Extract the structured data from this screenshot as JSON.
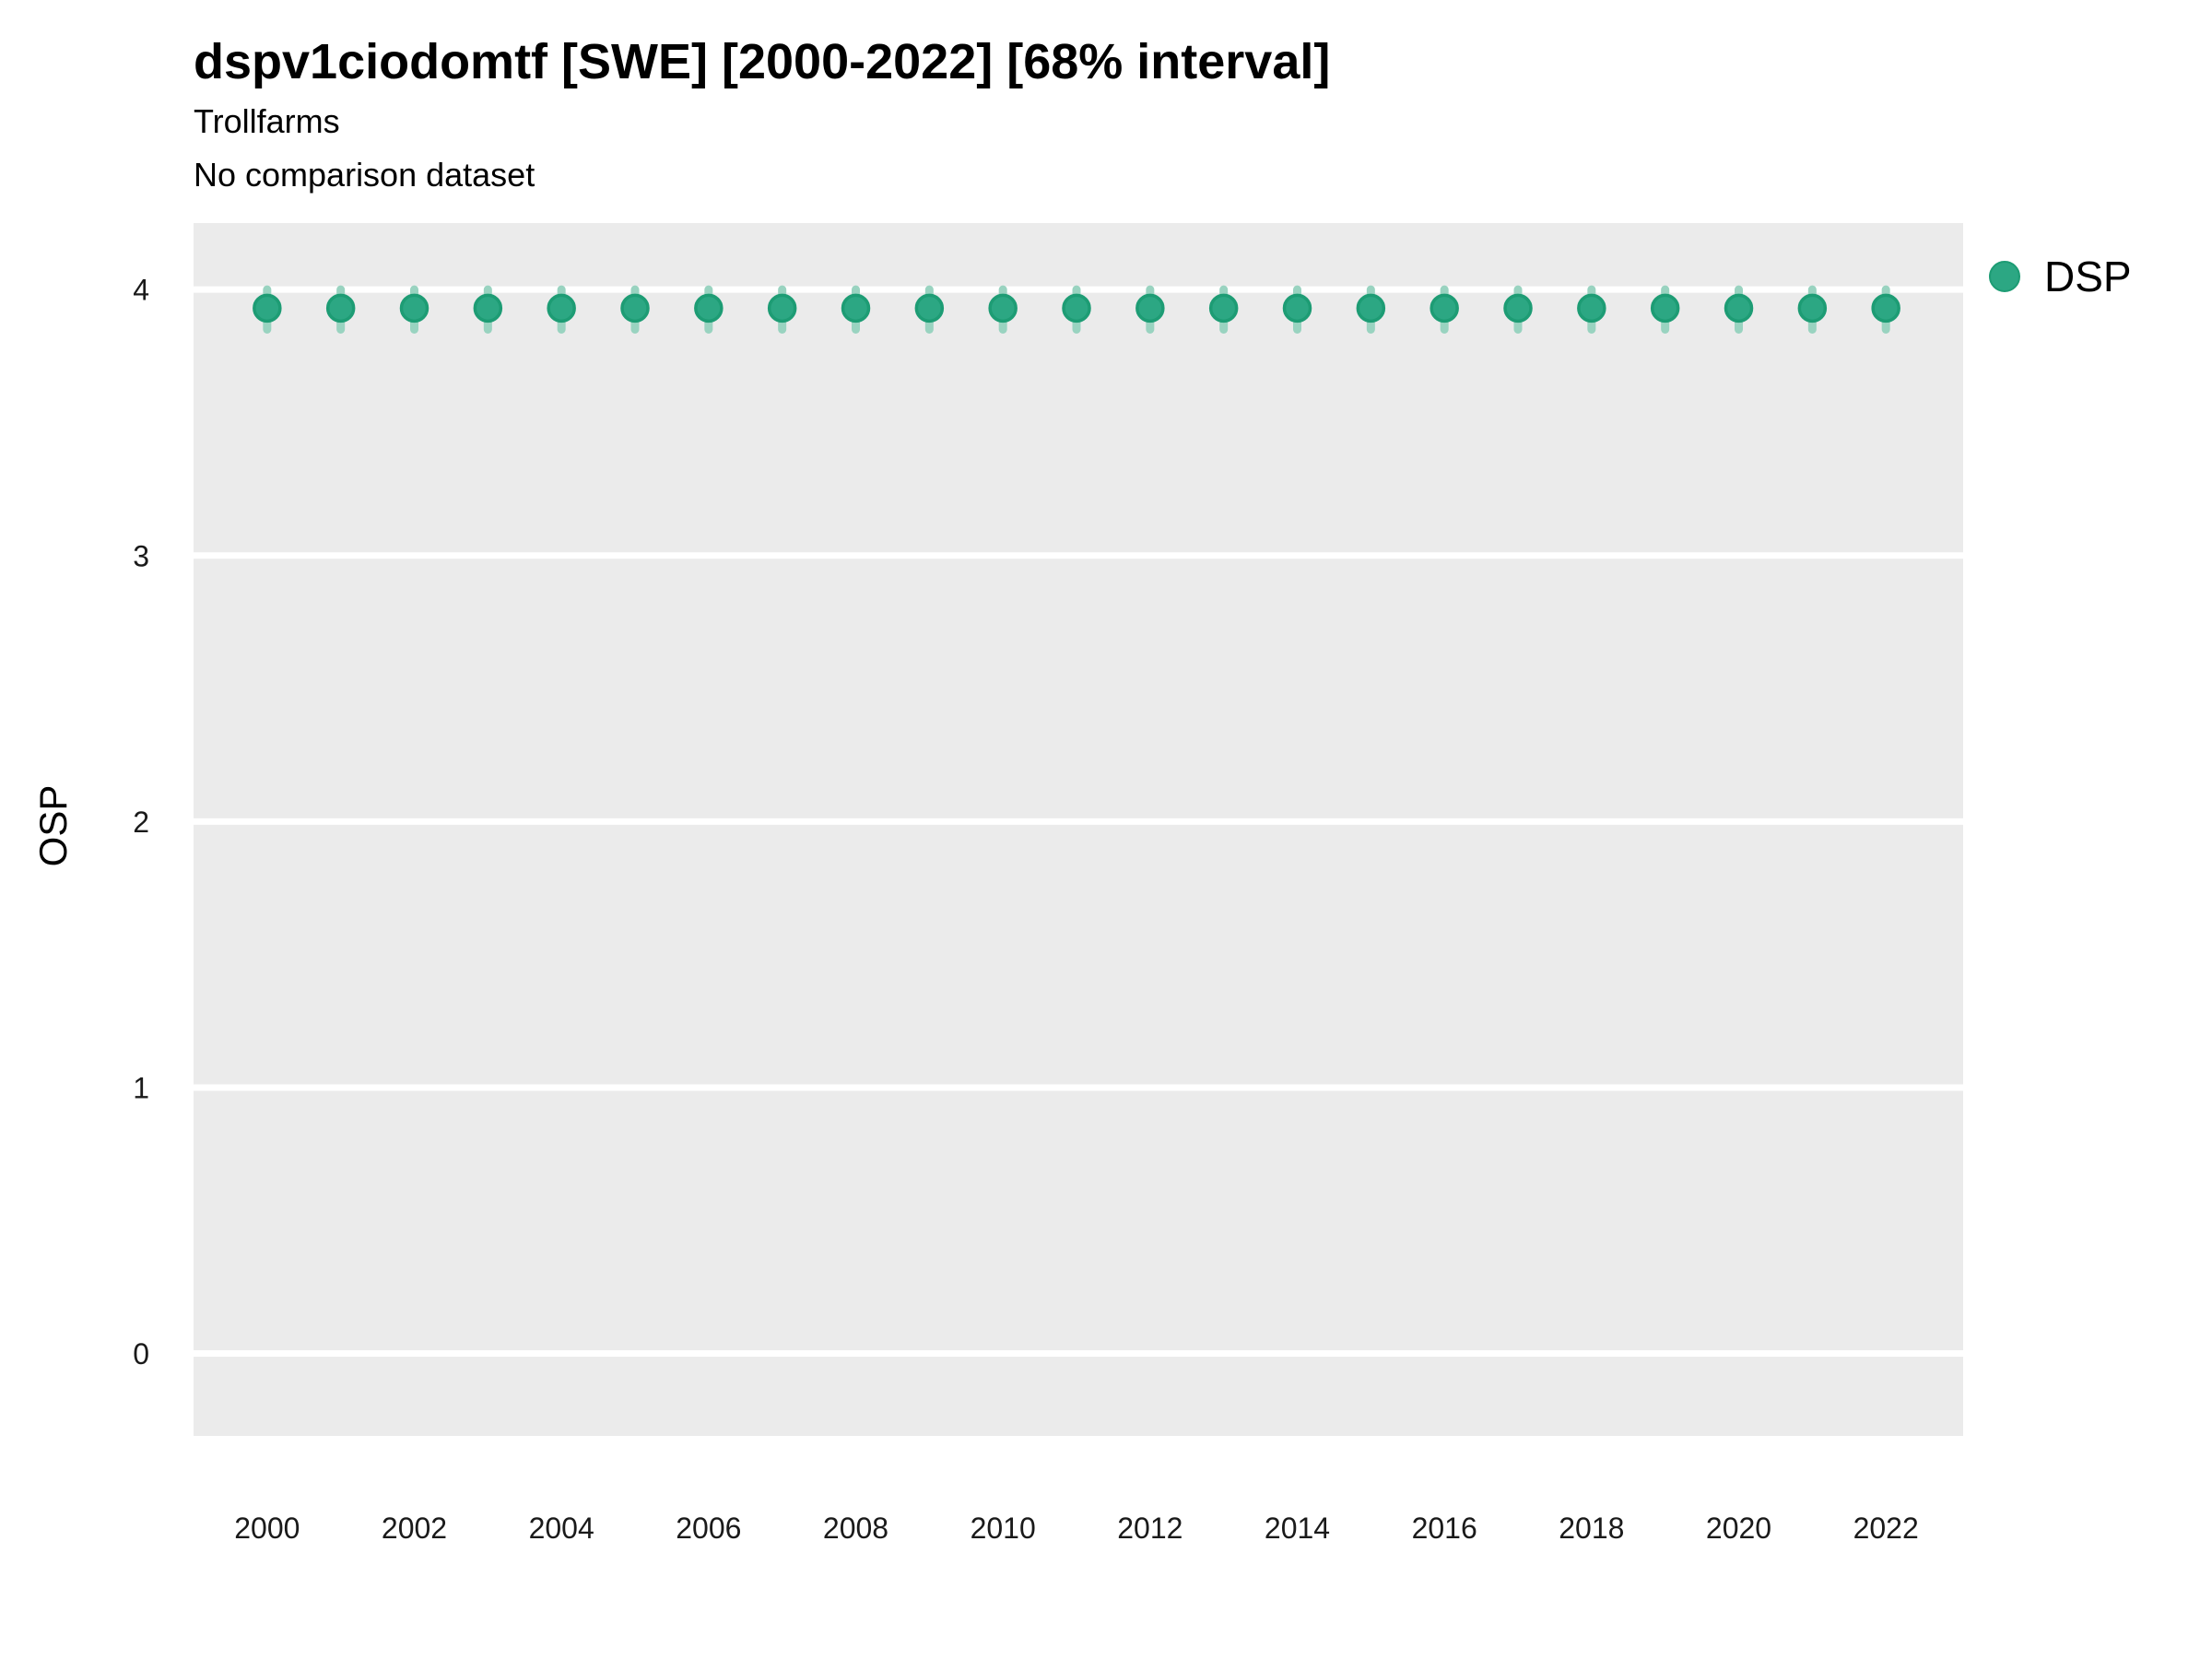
{
  "chart_data": {
    "type": "scatter",
    "title": "dspv1ciodomtf [SWE] [2000-2022] [68% interval]",
    "subtitle": "Trollfarms",
    "note": "No comparison dataset",
    "xlabel": "",
    "ylabel": "OSP",
    "x_ticks": [
      2000,
      2002,
      2004,
      2006,
      2008,
      2010,
      2012,
      2014,
      2016,
      2018,
      2020,
      2022
    ],
    "y_ticks": [
      4,
      3,
      2,
      1,
      0
    ],
    "xlim": [
      1999.0,
      2023.05
    ],
    "ylim": [
      -0.31,
      4.25
    ],
    "grid": {
      "horizontal_major": true,
      "vertical": false,
      "minor": false
    },
    "legend": {
      "position": "right-top",
      "entries": [
        {
          "label": "DSP",
          "marker": "circle"
        }
      ]
    },
    "series": [
      {
        "name": "DSP",
        "interval_level": "68%",
        "x": [
          2000,
          2001,
          2002,
          2003,
          2004,
          2005,
          2006,
          2007,
          2008,
          2009,
          2010,
          2011,
          2012,
          2013,
          2014,
          2015,
          2016,
          2017,
          2018,
          2019,
          2020,
          2021,
          2022
        ],
        "y": [
          3.93,
          3.93,
          3.93,
          3.93,
          3.93,
          3.93,
          3.93,
          3.93,
          3.93,
          3.93,
          3.93,
          3.93,
          3.93,
          3.93,
          3.93,
          3.93,
          3.93,
          3.93,
          3.93,
          3.93,
          3.93,
          3.93,
          3.93
        ],
        "interval_low": [
          3.85,
          3.85,
          3.85,
          3.85,
          3.85,
          3.85,
          3.85,
          3.85,
          3.85,
          3.85,
          3.85,
          3.85,
          3.85,
          3.85,
          3.85,
          3.85,
          3.85,
          3.85,
          3.85,
          3.85,
          3.85,
          3.85,
          3.85
        ],
        "interval_high": [
          4.0,
          4.0,
          4.0,
          4.0,
          4.0,
          4.0,
          4.0,
          4.0,
          4.0,
          4.0,
          4.0,
          4.0,
          4.0,
          4.0,
          4.0,
          4.0,
          4.0,
          4.0,
          4.0,
          4.0,
          4.0,
          4.0,
          4.0
        ]
      }
    ]
  },
  "colors": {
    "panel_background": "#ebebeb",
    "gridline": "#ffffff",
    "point_fill": "#2ca783",
    "point_stroke": "#1d9c74",
    "interval_bar": "#99d3c0",
    "tick_text": "#1a1a1a",
    "title_text": "#000000"
  }
}
